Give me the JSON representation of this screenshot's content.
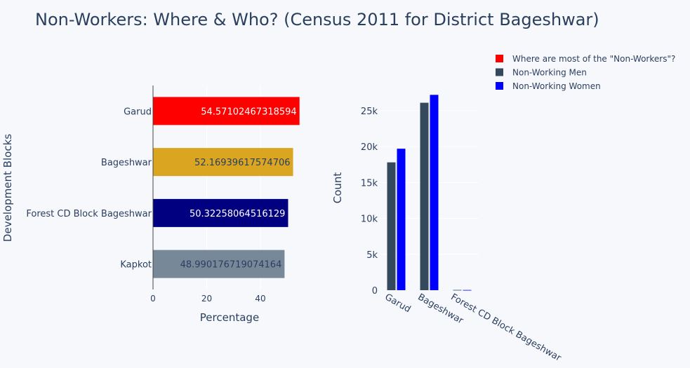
{
  "title": "Non-Workers: Where & Who? (Census 2011 for District Bageshwar)",
  "legend": [
    {
      "label": "Where are most of the \"Non-Workers\"?",
      "color": "#ff0000"
    },
    {
      "label": "Non-Working Men",
      "color": "#34495e"
    },
    {
      "label": "Non-Working Women",
      "color": "#0000ff"
    }
  ],
  "chart_data": [
    {
      "type": "bar",
      "orientation": "horizontal",
      "xlabel": "Percentage",
      "ylabel": "Development Blocks",
      "xlim": [
        0,
        57
      ],
      "xticks": [
        "0",
        "20",
        "40"
      ],
      "categories": [
        "Garud",
        "Bageshwar",
        "Forest CD Block Bageshwar",
        "Kapkot"
      ],
      "values": [
        54.57102467318594,
        52.16939617574706,
        50.32258064516129,
        48.990176719074164
      ],
      "labels": [
        "54.57102467318594",
        "52.16939617574706",
        "50.32258064516129",
        "48.990176719074164"
      ],
      "colors": [
        "#ff0000",
        "#daa520",
        "#000080",
        "#778899"
      ],
      "label_colors": [
        "#ffffff",
        "#2a3f5f",
        "#ffffff",
        "#2a3f5f"
      ]
    },
    {
      "type": "bar",
      "ylabel": "Count",
      "ylim": [
        0,
        28500
      ],
      "yticks": [
        "0",
        "5k",
        "10k",
        "15k",
        "20k",
        "25k"
      ],
      "categories": [
        "Garud",
        "Bageshwar",
        "Forest CD Block Bageshwar"
      ],
      "series": [
        {
          "name": "Non-Working Men",
          "values": [
            17800,
            26100,
            40
          ],
          "color": "#34495e"
        },
        {
          "name": "Non-Working Women",
          "values": [
            19700,
            27200,
            30
          ],
          "color": "#0000ff"
        }
      ]
    }
  ]
}
